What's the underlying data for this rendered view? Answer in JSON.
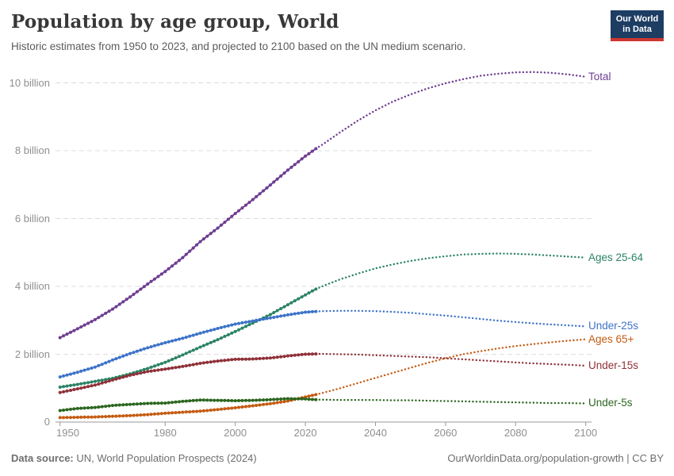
{
  "header": {
    "title": "Population by age group, World",
    "subtitle": "Historic estimates from 1950 to 2023, and projected to 2100 based on the UN medium scenario.",
    "logo": {
      "line1": "Our World",
      "line2": "in Data"
    }
  },
  "footer": {
    "source_label": "Data source:",
    "source_text": " UN, World Population Prospects (2024)",
    "credit": "OurWorldinData.org/population-growth | CC BY"
  },
  "colors": {
    "grid": "#dcdcdc",
    "axis": "#9a9a9a",
    "tick_text": "#8f8f8f",
    "logo_bg": "#1d3d63",
    "logo_stripe": "#cd3731"
  },
  "axes": {
    "x": {
      "ticks": [
        {
          "year": 1950,
          "label": "1950"
        },
        {
          "year": 1980,
          "label": "1980"
        },
        {
          "year": 2000,
          "label": "2000"
        },
        {
          "year": 2020,
          "label": "2020"
        },
        {
          "year": 2040,
          "label": "2040"
        },
        {
          "year": 2060,
          "label": "2060"
        },
        {
          "year": 2080,
          "label": "2080"
        },
        {
          "year": 2100,
          "label": "2100"
        }
      ]
    },
    "y": {
      "ticks": [
        {
          "value": 0,
          "label": "0"
        },
        {
          "value": 2,
          "label": "2 billion"
        },
        {
          "value": 4,
          "label": "4 billion"
        },
        {
          "value": 6,
          "label": "6 billion"
        },
        {
          "value": 8,
          "label": "8 billion"
        },
        {
          "value": 10,
          "label": "10 billion"
        }
      ]
    }
  },
  "chart_data": {
    "type": "line",
    "title": "Population by age group, World",
    "unit": "billion people",
    "xlabel": "",
    "ylabel": "",
    "x_range": [
      1950,
      2100
    ],
    "y_range": [
      0,
      10
    ],
    "grid": true,
    "legend_position": "right-edge-labels",
    "projection_from_year": 2023,
    "line_style": {
      "historic": "solid-with-yearly-markers",
      "projection": "dotted"
    },
    "years": [
      1950,
      1955,
      1960,
      1965,
      1970,
      1975,
      1980,
      1985,
      1990,
      1995,
      2000,
      2005,
      2010,
      2015,
      2020,
      2023,
      2025,
      2030,
      2035,
      2040,
      2045,
      2050,
      2055,
      2060,
      2065,
      2070,
      2075,
      2080,
      2085,
      2090,
      2095,
      2100
    ],
    "series": [
      {
        "name": "Total",
        "color": "#6d3e91",
        "values": [
          2.49,
          2.75,
          3.02,
          3.33,
          3.69,
          4.07,
          4.44,
          4.85,
          5.32,
          5.72,
          6.15,
          6.56,
          6.99,
          7.43,
          7.84,
          8.06,
          8.19,
          8.55,
          8.89,
          9.19,
          9.45,
          9.66,
          9.84,
          9.99,
          10.11,
          10.21,
          10.27,
          10.31,
          10.32,
          10.3,
          10.25,
          10.18
        ]
      },
      {
        "name": "Ages 25-64",
        "color": "#2c8465",
        "values": [
          1.03,
          1.11,
          1.2,
          1.29,
          1.42,
          1.58,
          1.76,
          1.98,
          2.21,
          2.43,
          2.67,
          2.92,
          3.17,
          3.46,
          3.75,
          3.92,
          4.01,
          4.21,
          4.38,
          4.53,
          4.65,
          4.75,
          4.83,
          4.89,
          4.94,
          4.96,
          4.97,
          4.96,
          4.94,
          4.91,
          4.88,
          4.85
        ]
      },
      {
        "name": "Under-25s",
        "color": "#3d73c9",
        "values": [
          1.33,
          1.47,
          1.62,
          1.83,
          2.02,
          2.19,
          2.34,
          2.47,
          2.62,
          2.76,
          2.89,
          2.98,
          3.07,
          3.16,
          3.24,
          3.26,
          3.27,
          3.28,
          3.28,
          3.27,
          3.25,
          3.22,
          3.18,
          3.14,
          3.09,
          3.04,
          2.99,
          2.95,
          2.91,
          2.88,
          2.85,
          2.82
        ]
      },
      {
        "name": "Ages 65+",
        "color": "#c45c13",
        "values": [
          0.13,
          0.14,
          0.15,
          0.17,
          0.19,
          0.22,
          0.26,
          0.29,
          0.32,
          0.37,
          0.42,
          0.48,
          0.54,
          0.62,
          0.74,
          0.81,
          0.86,
          1.0,
          1.15,
          1.3,
          1.45,
          1.6,
          1.75,
          1.88,
          2.0,
          2.09,
          2.17,
          2.24,
          2.3,
          2.35,
          2.4,
          2.44
        ]
      },
      {
        "name": "Under-15s",
        "color": "#8f3038",
        "values": [
          0.87,
          0.98,
          1.09,
          1.24,
          1.38,
          1.49,
          1.56,
          1.64,
          1.73,
          1.8,
          1.85,
          1.86,
          1.89,
          1.95,
          2.0,
          2.01,
          2.01,
          2.0,
          1.99,
          1.97,
          1.95,
          1.93,
          1.91,
          1.88,
          1.85,
          1.82,
          1.79,
          1.76,
          1.73,
          1.71,
          1.69,
          1.66
        ]
      },
      {
        "name": "Under-5s",
        "color": "#2c661f",
        "values": [
          0.34,
          0.4,
          0.43,
          0.49,
          0.52,
          0.55,
          0.56,
          0.61,
          0.65,
          0.64,
          0.63,
          0.64,
          0.66,
          0.69,
          0.68,
          0.66,
          0.66,
          0.65,
          0.65,
          0.65,
          0.64,
          0.64,
          0.63,
          0.62,
          0.61,
          0.6,
          0.59,
          0.58,
          0.57,
          0.56,
          0.56,
          0.55
        ]
      }
    ]
  }
}
